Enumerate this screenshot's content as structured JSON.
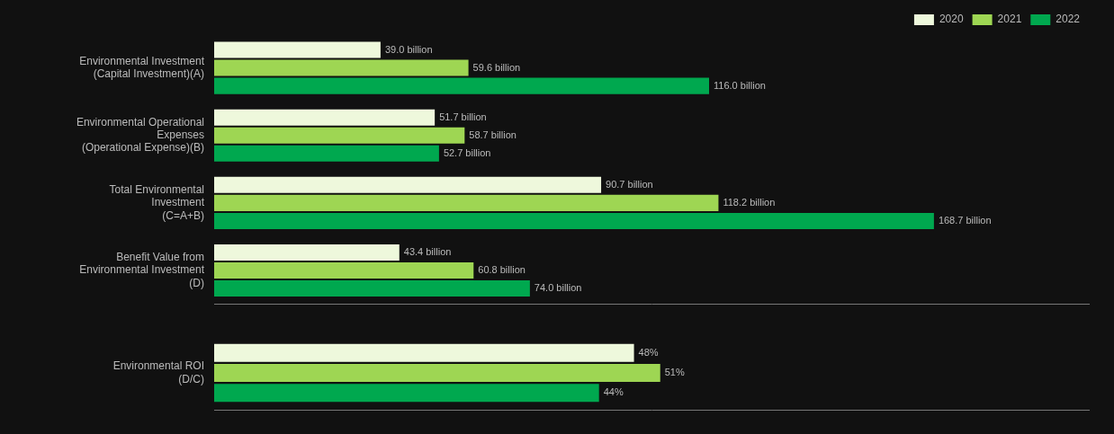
{
  "chart_data": [
    {
      "type": "bar",
      "orientation": "horizontal",
      "categories": [
        "Environmental Investment\n(Capital Investment)(A)",
        "Environmental Operational\nExpenses\n(Operational Expense)(B)",
        "Total Environmental\nInvestment\n(C=A+B)",
        "Benefit Value from\nEnvironmental Investment\n(D)"
      ],
      "series": [
        {
          "name": "2020",
          "color": "#eef8dc",
          "values": [
            39.0,
            51.7,
            90.7,
            43.4
          ],
          "value_labels": [
            "39.0 billion",
            "51.7 billion",
            "90.7 billion",
            "43.4 billion"
          ]
        },
        {
          "name": "2021",
          "color": "#9ed653",
          "values": [
            59.6,
            58.7,
            118.2,
            60.8
          ],
          "value_labels": [
            "59.6 billion",
            "58.7 billion",
            "118.2 billion",
            "60.8 billion"
          ]
        },
        {
          "name": "2022",
          "color": "#00a84f",
          "values": [
            116.0,
            52.7,
            168.7,
            74.0
          ],
          "value_labels": [
            "116.0 billion",
            "52.7 billion",
            "168.7 billion",
            "74.0 billion"
          ]
        }
      ],
      "xlim": [
        0,
        205
      ],
      "grid": false,
      "legend": "upper right",
      "tick_labels": "y",
      "data_labels": true
    },
    {
      "type": "bar",
      "orientation": "horizontal",
      "categories": [
        "Environmental ROI\n(D/C)"
      ],
      "series": [
        {
          "name": "2020",
          "color": "#eef8dc",
          "values": [
            48
          ],
          "value_labels": [
            "48%"
          ]
        },
        {
          "name": "2021",
          "color": "#9ed653",
          "values": [
            51
          ],
          "value_labels": [
            "51%"
          ]
        },
        {
          "name": "2022",
          "color": "#00a84f",
          "values": [
            44
          ],
          "value_labels": [
            "44%"
          ]
        }
      ],
      "xlim": [
        0,
        100
      ],
      "grid": false,
      "tick_labels": "y",
      "data_labels": true
    }
  ]
}
